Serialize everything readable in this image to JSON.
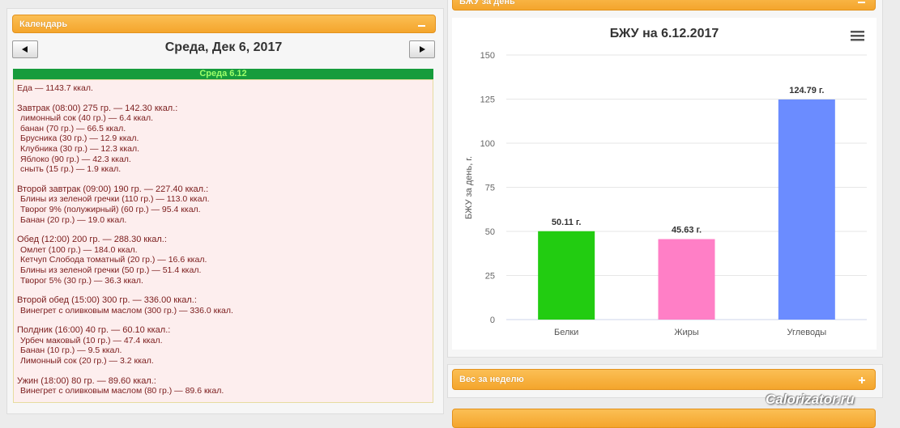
{
  "top_panel": {
    "title": "БЖУ за день"
  },
  "calendar": {
    "title": "Календарь",
    "date": "Среда, Дек 6, 2017",
    "day_header": "Среда 6.12",
    "total": "Еда — 1143.7 ккал.",
    "meals": [
      {
        "title": "Завтрак (08:00) 275 гр. — 142.30 ккал.:",
        "items": [
          "лимонный сок (40 гр.) — 6.4 ккал.",
          "банан (70 гр.) — 66.5 ккал.",
          "Брусника (30 гр.) — 12.9 ккал.",
          "Клубника (30 гр.) — 12.3 ккал.",
          "Яблоко (90 гр.) — 42.3 ккал.",
          "сныть (15 гр.) — 1.9 ккал."
        ]
      },
      {
        "title": "Второй завтрак (09:00) 190 гр. — 227.40 ккал.:",
        "items": [
          "Блины из зеленой гречки (110 гр.) — 113.0 ккал.",
          "Творог 9% (полужирный) (60 гр.) — 95.4 ккал.",
          "Банан (20 гр.) — 19.0 ккал."
        ]
      },
      {
        "title": "Обед (12:00) 200 гр. — 288.30 ккал.:",
        "items": [
          "Омлет (100 гр.) — 184.0 ккал.",
          "Кетчуп Слобода томатный (20 гр.) — 16.6 ккал.",
          "Блины из зеленой гречки (50 гр.) — 51.4 ккал.",
          "Творог 5% (30 гр.) — 36.3 ккал."
        ]
      },
      {
        "title": "Второй обед (15:00) 300 гр. — 336.00 ккал.:",
        "items": [
          "Винегрет с оливковым маслом (300 гр.) — 336.0 ккал."
        ]
      },
      {
        "title": "Полдник (16:00) 40 гр. — 60.10 ккал.:",
        "items": [
          "Урбеч маковый (10 гр.) — 47.4 ккал.",
          "Банан (10 гр.) — 9.5 ккал.",
          "Лимонный сок (20 гр.) — 3.2 ккал."
        ]
      },
      {
        "title": "Ужин (18:00) 80 гр. — 89.60 ккал.:",
        "items": [
          "Винегрет с оливковым маслом (80 гр.) — 89.6 ккал."
        ]
      }
    ]
  },
  "chart_data": {
    "type": "bar",
    "title": "БЖУ на 6.12.2017",
    "y_label": "БЖУ за день, г.",
    "categories": [
      "Белки",
      "Жиры",
      "Углеводы"
    ],
    "values": [
      50.11,
      45.63,
      124.79
    ],
    "value_labels": [
      "50.11 г.",
      "45.63 г.",
      "124.79 г."
    ],
    "colors": [
      "#22cc11",
      "#ff7fc6",
      "#6b8cff"
    ],
    "ylim": [
      0,
      150
    ],
    "yticks": [
      0,
      25,
      50,
      75,
      100,
      125,
      150
    ],
    "grid": true
  },
  "weight_panel": {
    "title": "Вес за неделю"
  },
  "watermark": "Calorizator.ru"
}
